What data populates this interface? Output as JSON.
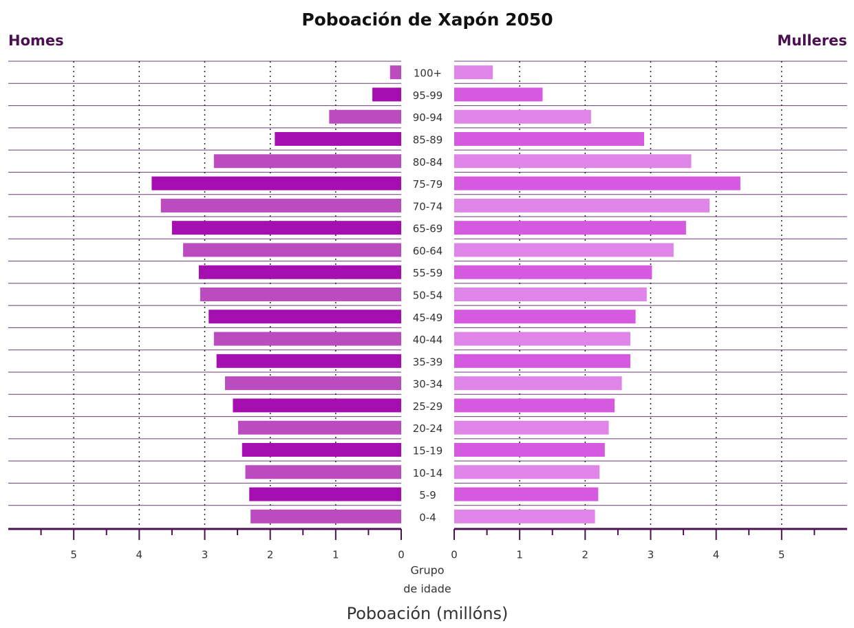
{
  "chart_data": {
    "type": "pyramid",
    "title": "Poboación de Xapón 2050",
    "xlabel": "Poboación (millóns)",
    "category_label": [
      "Grupo",
      "de idade"
    ],
    "categories": [
      "100+",
      "95-99",
      "90-94",
      "85-89",
      "80-84",
      "75-79",
      "70-74",
      "65-69",
      "60-64",
      "55-59",
      "50-54",
      "45-49",
      "40-44",
      "35-39",
      "30-34",
      "25-29",
      "20-24",
      "15-19",
      "10-14",
      "5-9",
      "0-4"
    ],
    "series": [
      {
        "name": "Homes",
        "side": "left",
        "colors": [
          "#bb4cc0",
          "#a50fb0"
        ],
        "values": [
          0.17,
          0.44,
          1.1,
          1.93,
          2.86,
          3.81,
          3.67,
          3.5,
          3.33,
          3.09,
          3.07,
          2.94,
          2.86,
          2.82,
          2.69,
          2.57,
          2.49,
          2.43,
          2.38,
          2.32,
          2.3
        ]
      },
      {
        "name": "Mulleres",
        "side": "right",
        "colors": [
          "#e085e8",
          "#d65ae0"
        ],
        "values": [
          0.59,
          1.35,
          2.09,
          2.9,
          3.62,
          4.37,
          3.9,
          3.54,
          3.35,
          3.02,
          2.94,
          2.77,
          2.69,
          2.69,
          2.56,
          2.45,
          2.36,
          2.3,
          2.22,
          2.2,
          2.15
        ]
      }
    ],
    "xlim": [
      0,
      6
    ],
    "xticks": [
      0,
      1,
      2,
      3,
      4,
      5
    ],
    "xminorticks": [
      0.5,
      1.5,
      2.5,
      3.5,
      4.5,
      5.5
    ],
    "grid": true
  }
}
